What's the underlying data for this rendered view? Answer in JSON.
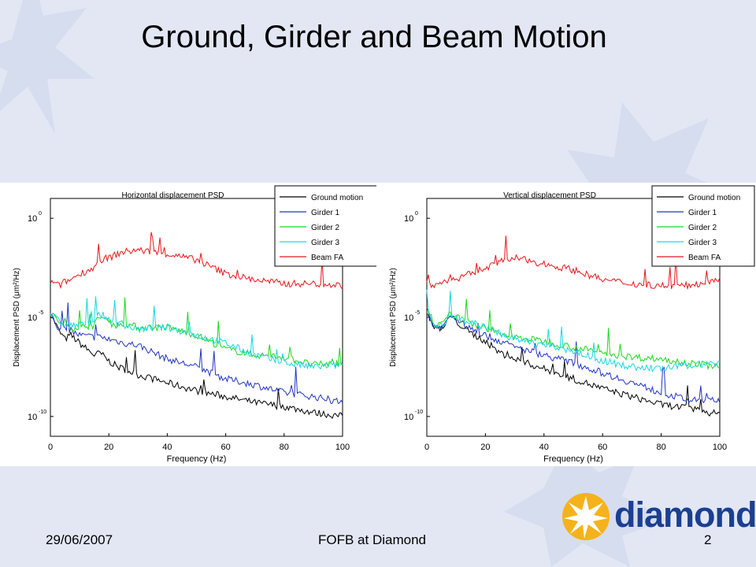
{
  "slide": {
    "title": "Ground, Girder and Beam Motion",
    "footer_date": "29/06/2007",
    "footer_center": "FOFB at Diamond",
    "page_number": "2",
    "logo_text": "diamond",
    "background_color": "#e3e7f4",
    "logo_color": "#1b3f91",
    "logo_star_color": "#f6b21b"
  },
  "chart_data": [
    {
      "type": "line",
      "title": "Horizontal displacement PSD",
      "xlabel": "Frequency (Hz)",
      "ylabel": "Displacement PSD (μm²/Hz)",
      "xlim": [
        0,
        100
      ],
      "ylim": [
        1e-11,
        10
      ],
      "yscale": "log",
      "xticks": [
        0,
        20,
        40,
        60,
        80,
        100
      ],
      "yticks": [
        {
          "base": "10",
          "exp": "0"
        },
        {
          "base": "10",
          "exp": "-5"
        },
        {
          "base": "10",
          "exp": "-10"
        }
      ],
      "legend_position": "top-right",
      "series": [
        {
          "name": "Ground motion",
          "color": "#000000",
          "x": [
            0,
            3,
            5,
            7,
            10,
            15,
            17,
            20,
            23,
            25,
            30,
            40,
            50,
            60,
            70,
            80,
            90,
            100
          ],
          "y": [
            -4.8,
            -5.7,
            -6.1,
            -5.9,
            -6.3,
            -6.9,
            -6.8,
            -7.2,
            -7.5,
            -7.6,
            -7.9,
            -8.3,
            -8.7,
            -9.0,
            -9.3,
            -9.5,
            -9.8,
            -10.0
          ]
        },
        {
          "name": "Girder 1",
          "color": "#1f33c4",
          "x": [
            0,
            3,
            5,
            7,
            10,
            15,
            17,
            20,
            23,
            25,
            30,
            40,
            50,
            60,
            70,
            80,
            90,
            100
          ],
          "y": [
            -4.8,
            -5.6,
            -5.6,
            -5.7,
            -5.9,
            -6.0,
            -6.0,
            -6.1,
            -6.2,
            -6.3,
            -6.4,
            -7.1,
            -7.5,
            -8.1,
            -8.4,
            -8.8,
            -9.0,
            -9.3
          ]
        },
        {
          "name": "Girder 2",
          "color": "#18d81c",
          "x": [
            0,
            3,
            5,
            7,
            10,
            15,
            17,
            20,
            23,
            25,
            30,
            40,
            50,
            60,
            70,
            80,
            90,
            100
          ],
          "y": [
            -4.8,
            -5.2,
            -5.5,
            -5.5,
            -5.5,
            -5.4,
            -4.9,
            -5.3,
            -5.4,
            -5.3,
            -5.5,
            -5.5,
            -5.9,
            -6.6,
            -6.9,
            -7.0,
            -7.4,
            -7.3
          ]
        },
        {
          "name": "Girder 3",
          "color": "#19d6e0",
          "x": [
            0,
            3,
            5,
            7,
            10,
            15,
            17,
            20,
            23,
            25,
            30,
            40,
            50,
            60,
            70,
            80,
            90,
            100
          ],
          "y": [
            -4.8,
            -5.2,
            -5.4,
            -5.4,
            -5.4,
            -5.2,
            -4.8,
            -5.1,
            -5.3,
            -5.4,
            -5.6,
            -5.5,
            -5.9,
            -6.3,
            -6.9,
            -7.3,
            -7.5,
            -7.4
          ]
        },
        {
          "name": "Beam FA",
          "color": "#e8151a",
          "x": [
            0,
            3,
            5,
            7,
            10,
            15,
            17,
            20,
            23,
            25,
            30,
            40,
            50,
            60,
            70,
            80,
            90,
            100
          ],
          "y": [
            -3.2,
            -3.4,
            -3.2,
            -3.1,
            -2.8,
            -2.5,
            -2.1,
            -2.0,
            -1.8,
            -1.7,
            -1.6,
            -1.8,
            -2.1,
            -2.8,
            -3.1,
            -3.3,
            -3.3,
            -3.4
          ]
        }
      ]
    },
    {
      "type": "line",
      "title": "Vertical displacement PSD",
      "xlabel": "Frequency (Hz)",
      "ylabel": "Displacement PSD (μm²/Hz)",
      "xlim": [
        0,
        100
      ],
      "ylim": [
        1e-11,
        10
      ],
      "yscale": "log",
      "xticks": [
        0,
        20,
        40,
        60,
        80,
        100
      ],
      "yticks": [
        {
          "base": "10",
          "exp": "0"
        },
        {
          "base": "10",
          "exp": "-5"
        },
        {
          "base": "10",
          "exp": "-10"
        }
      ],
      "legend_position": "top-right",
      "series": [
        {
          "name": "Ground motion",
          "color": "#000000",
          "x": [
            0,
            2,
            4,
            6,
            8,
            10,
            15,
            20,
            25,
            30,
            40,
            50,
            60,
            70,
            80,
            90,
            100
          ],
          "y": [
            -4.6,
            -5.4,
            -5.6,
            -5.5,
            -4.9,
            -5.2,
            -5.8,
            -6.2,
            -6.8,
            -7.1,
            -7.6,
            -8.1,
            -8.6,
            -9.0,
            -9.4,
            -9.6,
            -9.9
          ]
        },
        {
          "name": "Girder 1",
          "color": "#1f33c4",
          "x": [
            0,
            2,
            4,
            6,
            8,
            10,
            15,
            20,
            25,
            30,
            40,
            50,
            60,
            70,
            80,
            90,
            100
          ],
          "y": [
            -4.6,
            -5.4,
            -5.5,
            -5.4,
            -4.9,
            -5.1,
            -5.6,
            -5.9,
            -6.2,
            -6.5,
            -6.9,
            -7.3,
            -7.8,
            -8.3,
            -8.8,
            -9.2,
            -9.2
          ]
        },
        {
          "name": "Girder 2",
          "color": "#18d81c",
          "x": [
            0,
            2,
            4,
            6,
            8,
            10,
            15,
            20,
            25,
            30,
            40,
            50,
            60,
            70,
            80,
            90,
            100
          ],
          "y": [
            -4.6,
            -5.3,
            -5.4,
            -5.3,
            -4.8,
            -5.0,
            -5.3,
            -5.5,
            -5.9,
            -6.0,
            -6.2,
            -6.5,
            -6.8,
            -7.0,
            -7.1,
            -7.3,
            -7.5
          ]
        },
        {
          "name": "Girder 3",
          "color": "#19d6e0",
          "x": [
            0,
            2,
            4,
            6,
            8,
            10,
            15,
            20,
            25,
            30,
            40,
            50,
            60,
            70,
            80,
            90,
            100
          ],
          "y": [
            -4.6,
            -5.3,
            -5.4,
            -5.3,
            -4.8,
            -5.0,
            -5.3,
            -5.5,
            -5.8,
            -6.1,
            -6.4,
            -6.7,
            -7.2,
            -7.5,
            -7.6,
            -7.4,
            -7.3
          ]
        },
        {
          "name": "Beam FA",
          "color": "#e8151a",
          "x": [
            0,
            2,
            4,
            6,
            8,
            10,
            15,
            20,
            25,
            30,
            40,
            50,
            60,
            70,
            80,
            90,
            100
          ],
          "y": [
            -3.2,
            -3.4,
            -3.3,
            -3.2,
            -3.0,
            -3.1,
            -2.8,
            -2.5,
            -2.2,
            -2.0,
            -2.3,
            -2.6,
            -3.1,
            -3.3,
            -3.4,
            -3.4,
            -3.0
          ]
        }
      ]
    }
  ]
}
